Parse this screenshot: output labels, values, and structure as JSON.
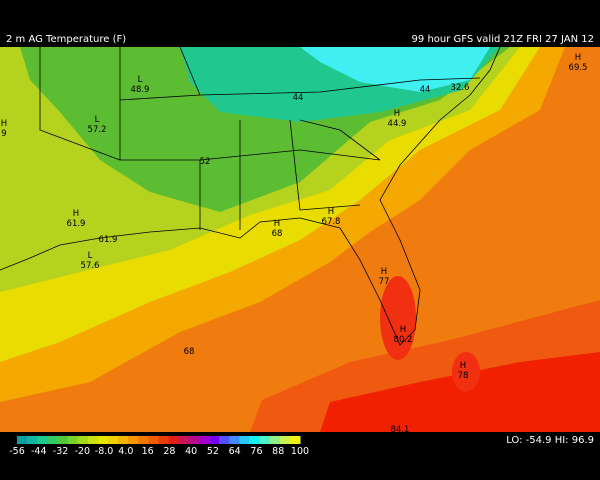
{
  "header": {
    "title": "2 m AG Temperature (F)",
    "run": "99 hour GFS valid 21Z FRI 27 JAN 12"
  },
  "markers": [
    {
      "kind": "L",
      "value": "48.9"
    },
    {
      "value": "44"
    },
    {
      "value": "44"
    },
    {
      "value": "32.6"
    },
    {
      "kind": "H",
      "value": "69.5"
    },
    {
      "kind": "H",
      "value": "9"
    },
    {
      "kind": "L",
      "value": "57.2"
    },
    {
      "value": "52"
    },
    {
      "kind": "H",
      "value": "44.9"
    },
    {
      "kind": "H",
      "value": "61.9"
    },
    {
      "value": "61.9"
    },
    {
      "kind": "L",
      "value": "57.6"
    },
    {
      "kind": "H",
      "value": "67.8"
    },
    {
      "kind": "H",
      "value": "68"
    },
    {
      "value": "68"
    },
    {
      "kind": "H",
      "value": "77"
    },
    {
      "kind": "H",
      "value": "80.2"
    },
    {
      "kind": "H",
      "value": "78"
    },
    {
      "value": "84.1"
    }
  ],
  "colorbar": {
    "colors": [
      "#0aa0a0",
      "#14b4a0",
      "#1ec88c",
      "#32c864",
      "#50c83c",
      "#78d228",
      "#a0d81e",
      "#c8e014",
      "#e6e600",
      "#f0d200",
      "#f4b400",
      "#f49600",
      "#f07800",
      "#f05a00",
      "#e83c00",
      "#e01e1e",
      "#c8145a",
      "#b40a8c",
      "#a000c8",
      "#7800f0",
      "#5050ff",
      "#3c8cff",
      "#28c8ff",
      "#14f0f0",
      "#50f0c8",
      "#8cf08c",
      "#c8f050",
      "#f0f014"
    ],
    "ticks": [
      "-56",
      "-44",
      "-32",
      "-20",
      "-8.0",
      "4.0",
      "16",
      "28",
      "40",
      "52",
      "64",
      "76",
      "88",
      "100"
    ]
  },
  "stats": "LO: -54.9  HI: 96.9"
}
